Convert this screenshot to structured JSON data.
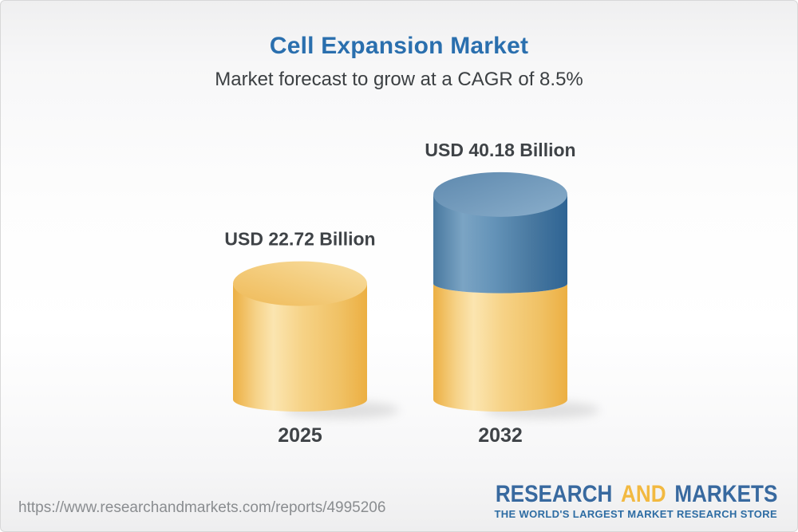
{
  "header": {
    "title": "Cell Expansion Market",
    "subtitle": "Market forecast to grow at a CAGR of 8.5%"
  },
  "chart_data": {
    "type": "bar",
    "subtype": "stacked-3d-cylinder",
    "title": "Cell Expansion Market",
    "subtitle": "Market forecast to grow at a CAGR of 8.5%",
    "unit": "USD Billion",
    "cagr_percent": 8.5,
    "categories": [
      "2025",
      "2032"
    ],
    "bar_totals": [
      22.72,
      40.18
    ],
    "value_labels": [
      "USD 22.72 Billion",
      "USD 40.18 Billion"
    ],
    "series": [
      {
        "name": "base-market-size",
        "color_key": "gold",
        "values": [
          22.72,
          22.72
        ]
      },
      {
        "name": "forecast-growth",
        "color_key": "blue",
        "values": [
          0,
          17.46
        ]
      }
    ],
    "legend": "none",
    "grid": "off"
  },
  "colors": {
    "title_blue": "#2A6FAE",
    "text_dark": "#3F4347",
    "gold_main": "#F3CB79",
    "blue_main": "#41719C",
    "url_gray": "#8A8D90",
    "logo_blue": "#38699F",
    "logo_gold": "#F2B941"
  },
  "footer": {
    "url": "https://www.researchandmarkets.com/reports/4995206",
    "logo": {
      "part1": "RESEARCH",
      "part2": "AND",
      "part3": "MARKETS",
      "tagline": "THE WORLD'S LARGEST MARKET RESEARCH STORE"
    }
  }
}
